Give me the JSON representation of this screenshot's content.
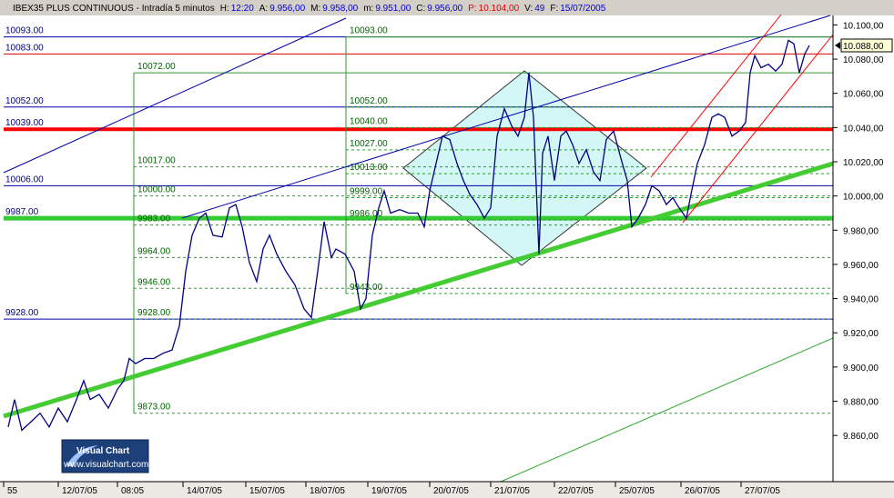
{
  "chart_data": {
    "type": "line",
    "header": {
      "symbol": "IBEX35 PLUS CONTINUOUS - Intradía 5 minutos",
      "fields": [
        {
          "label": "H:",
          "value": "12:20",
          "color": "#0000cc"
        },
        {
          "label": "A:",
          "value": "9.956,00",
          "color": "#0000cc"
        },
        {
          "label": "M:",
          "value": "9.958,00",
          "color": "#0000cc"
        },
        {
          "label": "m:",
          "value": "9.951,00",
          "color": "#0000cc"
        },
        {
          "label": "C:",
          "value": "9.956,00",
          "color": "#0000cc"
        },
        {
          "label": "P:",
          "value": "10.104,00",
          "color": "#e00000"
        },
        {
          "label": "V:",
          "value": "49",
          "color": "#0000cc"
        },
        {
          "label": "F:",
          "value": "15/07/2005",
          "color": "#0000cc"
        }
      ]
    },
    "x": [
      5,
      12,
      20,
      30,
      40,
      50,
      60,
      70,
      80,
      88,
      95,
      105,
      115,
      125,
      132,
      138,
      145,
      155,
      165,
      175,
      185,
      193,
      200,
      207,
      215,
      222,
      230,
      240,
      248,
      255,
      262,
      270,
      278,
      285,
      292,
      300,
      310,
      320,
      330,
      338,
      345,
      352,
      360,
      365,
      375,
      385,
      392,
      398,
      405,
      412,
      418,
      425,
      435,
      445,
      455,
      462,
      468,
      475,
      482,
      490,
      498,
      505,
      512,
      520,
      528,
      535,
      542,
      550,
      558,
      565,
      572,
      577,
      582,
      588,
      592,
      598,
      605,
      612,
      618,
      625,
      632,
      640,
      648,
      655,
      662,
      670,
      678,
      685,
      690,
      697,
      705,
      712,
      720,
      728,
      735,
      742,
      750,
      755,
      762,
      770,
      778,
      785,
      792,
      800,
      808,
      815,
      820,
      825,
      832,
      840,
      848,
      855,
      862,
      868,
      874,
      880,
      885
    ],
    "series": [
      {
        "color": "#000080",
        "values": [
          9865,
          9881,
          9863,
          9868,
          9873,
          9865,
          9876,
          9868,
          9881,
          9892,
          9881,
          9884,
          9876,
          9887,
          9892,
          9905,
          9902,
          9905,
          9905,
          9908,
          9910,
          9924,
          9956,
          9977,
          9987,
          9990,
          9977,
          9976,
          9993,
          9995,
          9982,
          9961,
          9950,
          9969,
          9977,
          9966,
          9956,
          9948,
          9934,
          9929,
          9956,
          9985,
          9964,
          9969,
          9966,
          9956,
          9934,
          9940,
          9977,
          9993,
          10003,
          9990,
          9992,
          9990,
          9990,
          9982,
          10003,
          10019,
          10035,
          10033,
          10019,
          10009,
          10001,
          9995,
          9987,
          9993,
          10035,
          10051,
          10041,
          10035,
          10046,
          10072,
          10046,
          9966,
          10025,
          10035,
          10009,
          10035,
          10038,
          10030,
          10019,
          10027,
          10014,
          10009,
          10033,
          10038,
          10022,
          10009,
          9982,
          9987,
          9995,
          10006,
          10003,
          9995,
          9999,
          9993,
          9987,
          10001,
          10019,
          10030,
          10046,
          10048,
          10046,
          10035,
          10038,
          10043,
          10072,
          10082,
          10075,
          10077,
          10073,
          10077,
          10091,
          10089,
          10072,
          10083,
          10088
        ]
      }
    ],
    "xlim": [
      0,
      911
    ],
    "xticks": [
      {
        "value": 0,
        "label": "55"
      },
      {
        "value": 60,
        "label": "12/07/05"
      },
      {
        "value": 125,
        "label": "08:05"
      },
      {
        "value": 197,
        "label": "14/07/05"
      },
      {
        "value": 266,
        "label": "15/07/05"
      },
      {
        "value": 332,
        "label": "18/07/05"
      },
      {
        "value": 400,
        "label": "19/07/05"
      },
      {
        "value": 468,
        "label": "20/07/05"
      },
      {
        "value": 535,
        "label": "21/07/05"
      },
      {
        "value": 605,
        "label": "22/07/05"
      },
      {
        "value": 672,
        "label": "25/07/05"
      },
      {
        "value": 744,
        "label": "26/07/05"
      },
      {
        "value": 810,
        "label": "27/07/05"
      }
    ],
    "ylim": [
      9833,
      10105
    ],
    "yticks": [
      {
        "value": 9860,
        "label": "9.860,00"
      },
      {
        "value": 9880,
        "label": "9.880,00"
      },
      {
        "value": 9900,
        "label": "9.900,00"
      },
      {
        "value": 9920,
        "label": "9.920,00"
      },
      {
        "value": 9940,
        "label": "9.940,00"
      },
      {
        "value": 9960,
        "label": "9.960,00"
      },
      {
        "value": 9980,
        "label": "9.980,00"
      },
      {
        "value": 10000,
        "label": "10.000,00"
      },
      {
        "value": 10020,
        "label": "10.020,00"
      },
      {
        "value": 10040,
        "label": "10.040,00"
      },
      {
        "value": 10060,
        "label": "10.060,00"
      },
      {
        "value": 10080,
        "label": "10.080,00"
      },
      {
        "value": 10100,
        "label": "10.100,00"
      }
    ],
    "last_price": {
      "value": 10088,
      "label": "10.088,00"
    },
    "level_label_color": "#000080",
    "levels": [
      {
        "value": 10093,
        "label": "10093.00",
        "color": "#0000aa",
        "width": 1
      },
      {
        "value": 10083,
        "label": "10083.00",
        "color": "#e00000",
        "width": 1
      },
      {
        "value": 10052,
        "label": "10052.00",
        "color": "#0000aa",
        "width": 1
      },
      {
        "value": 10039,
        "label": "10039.00",
        "color": "#ff0000",
        "width": 4
      },
      {
        "value": 10006,
        "label": "10006.00",
        "color": "#0000aa",
        "width": 1
      },
      {
        "value": 9987,
        "label": "9987.00",
        "color": "#33cc33",
        "width": 5
      },
      {
        "value": 9928,
        "label": "9928.00",
        "color": "#0000aa",
        "width": 1
      }
    ],
    "fibonacci": [
      {
        "x": 143,
        "color": "#2e9a2e",
        "label_color": "#006400",
        "levels": [
          {
            "value": 10072,
            "label": "10072.00"
          },
          {
            "value": 10017,
            "label": "10017.00"
          },
          {
            "value": 10000,
            "label": "10000.00"
          },
          {
            "value": 9983,
            "label": "9983.00"
          },
          {
            "value": 9964,
            "label": "9964.00"
          },
          {
            "value": 9946,
            "label": "9946.00"
          },
          {
            "value": 9928,
            "label": "9928.00"
          },
          {
            "value": 9873,
            "label": "9873.00"
          }
        ]
      },
      {
        "x": 376,
        "color": "#2e9a2e",
        "label_color": "#006400",
        "levels": [
          {
            "value": 10093,
            "label": "10093.00"
          },
          {
            "value": 10052,
            "label": "10052.00"
          },
          {
            "value": 10040,
            "label": "10040.00"
          },
          {
            "value": 10027,
            "label": "10027.00"
          },
          {
            "value": 10013,
            "label": "10013.00"
          },
          {
            "value": 9999,
            "label": "9999.00"
          },
          {
            "value": 9986,
            "label": "9986.00"
          },
          {
            "value": 9943,
            "label": "9943.00"
          }
        ]
      }
    ],
    "branding": {
      "name": "Visual Chart",
      "url": "www.visualchart.com"
    }
  }
}
